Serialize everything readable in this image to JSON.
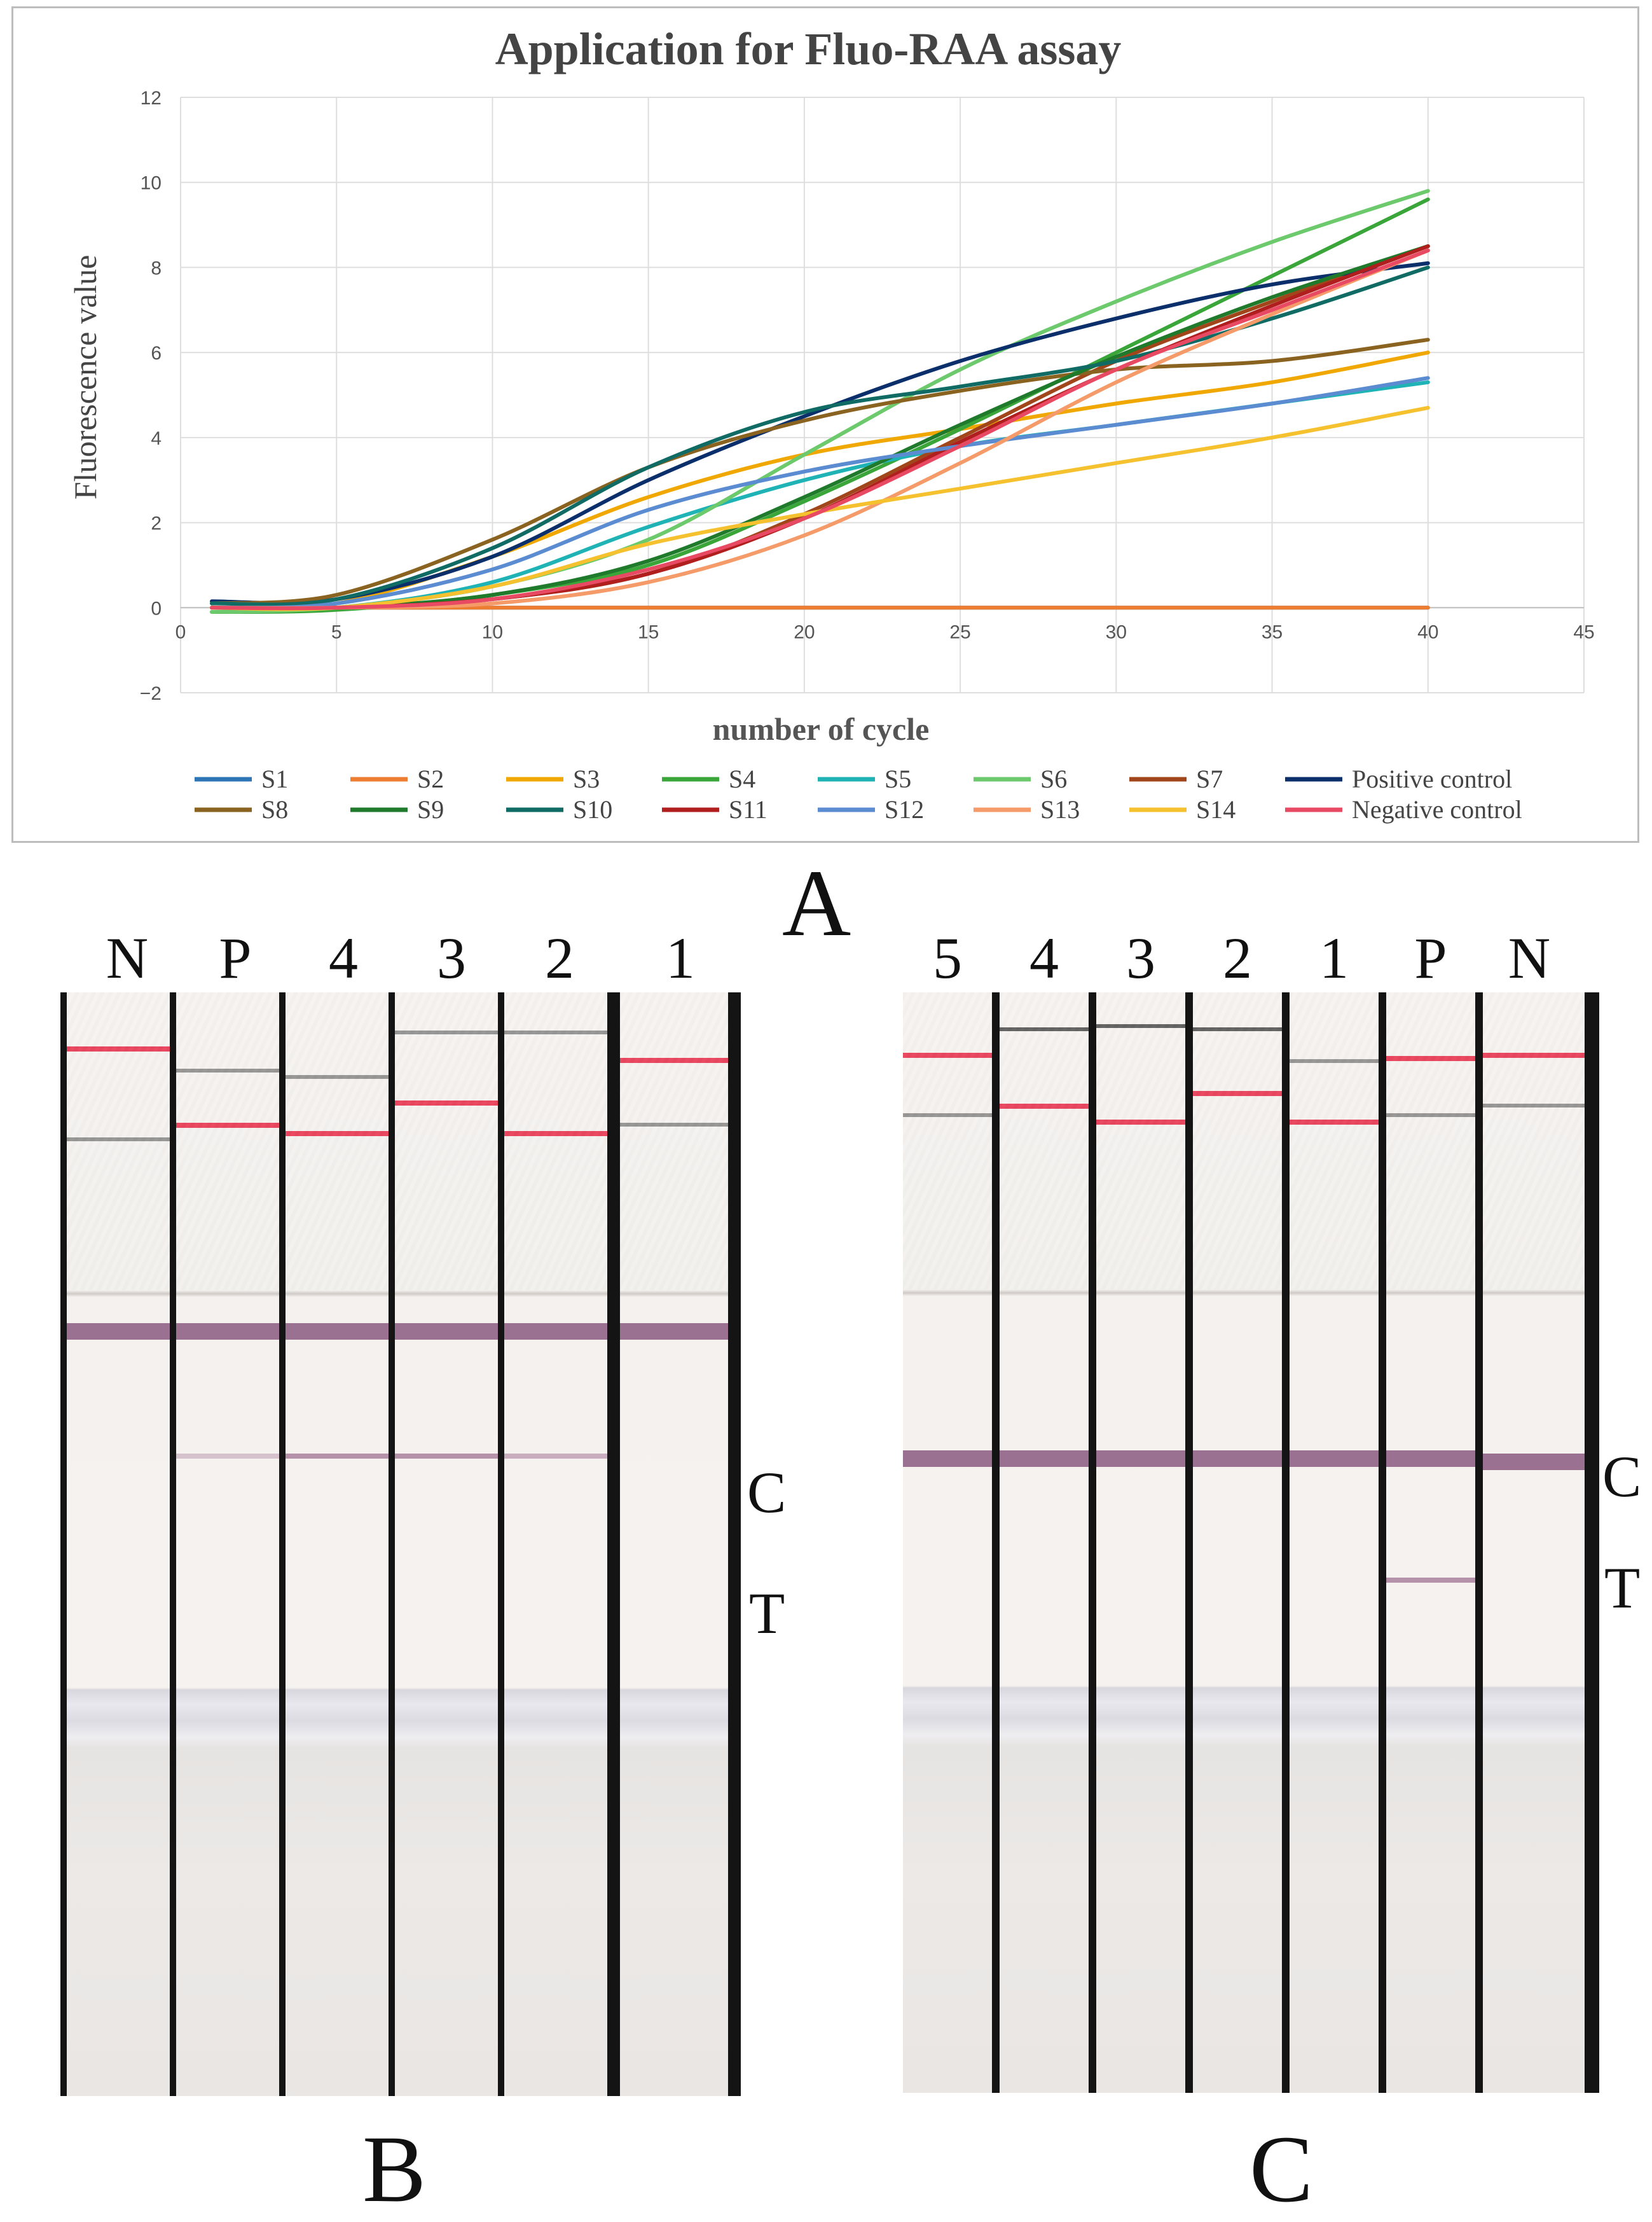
{
  "chart_data": {
    "type": "line",
    "title": "Application for Fluo-RAA assay",
    "xlabel": "number of cycle",
    "ylabel": "Fluorescence value",
    "xlim": [
      0,
      45
    ],
    "ylim": [
      -2,
      12
    ],
    "xticks": [
      0,
      5,
      10,
      15,
      20,
      25,
      30,
      35,
      40,
      45
    ],
    "yticks": [
      -2,
      0,
      2,
      4,
      6,
      8,
      10,
      12
    ],
    "ytick_labels": [
      "−2",
      "0",
      "2",
      "4",
      "6",
      "8",
      "10",
      "12"
    ],
    "grid": true,
    "legend_position": "bottom",
    "x": [
      1,
      5,
      10,
      15,
      20,
      25,
      30,
      35,
      40
    ],
    "series": [
      {
        "name": "S1",
        "color": "#2e75b6",
        "values": [
          0.0,
          0.0,
          0.0,
          0.0,
          0.0,
          0.0,
          0.0,
          0.0,
          0.0
        ]
      },
      {
        "name": "S2",
        "color": "#ed7d31",
        "values": [
          0.0,
          0.0,
          0.0,
          0.0,
          0.0,
          0.0,
          0.0,
          0.0,
          0.0
        ]
      },
      {
        "name": "S3",
        "color": "#f0a800",
        "values": [
          0.0,
          0.1,
          1.2,
          2.6,
          3.6,
          4.2,
          4.8,
          5.3,
          6.0
        ]
      },
      {
        "name": "S4",
        "color": "#3aa63a",
        "values": [
          -0.1,
          -0.05,
          0.3,
          1.0,
          2.5,
          4.2,
          6.0,
          7.8,
          9.6
        ]
      },
      {
        "name": "S5",
        "color": "#1fb3b5",
        "values": [
          0.0,
          0.0,
          0.6,
          1.9,
          3.0,
          3.8,
          4.3,
          4.8,
          5.3
        ]
      },
      {
        "name": "S6",
        "color": "#6cc96c",
        "values": [
          -0.1,
          0.0,
          0.5,
          1.6,
          3.6,
          5.6,
          7.2,
          8.6,
          9.8
        ]
      },
      {
        "name": "S7",
        "color": "#a0461a",
        "values": [
          0.0,
          0.0,
          0.2,
          0.8,
          2.2,
          4.0,
          5.8,
          7.2,
          8.5
        ]
      },
      {
        "name": "Positive control",
        "color": "#0a2f6b",
        "values": [
          0.15,
          0.2,
          1.2,
          3.0,
          4.5,
          5.8,
          6.8,
          7.6,
          8.1
        ]
      },
      {
        "name": "S8",
        "color": "#8a6320",
        "values": [
          0.1,
          0.3,
          1.6,
          3.3,
          4.4,
          5.1,
          5.6,
          5.8,
          6.3
        ]
      },
      {
        "name": "S9",
        "color": "#1f7a2c",
        "values": [
          0.0,
          0.0,
          0.3,
          1.1,
          2.6,
          4.3,
          5.9,
          7.3,
          8.5
        ]
      },
      {
        "name": "S10",
        "color": "#0f6b64",
        "values": [
          0.1,
          0.2,
          1.4,
          3.3,
          4.6,
          5.2,
          5.8,
          6.8,
          8.0
        ]
      },
      {
        "name": "S11",
        "color": "#b01e1e",
        "values": [
          0.0,
          0.0,
          0.2,
          0.8,
          2.1,
          3.9,
          5.6,
          7.1,
          8.5
        ]
      },
      {
        "name": "S12",
        "color": "#5b8bd0",
        "values": [
          0.0,
          0.1,
          0.9,
          2.3,
          3.2,
          3.8,
          4.3,
          4.8,
          5.4
        ]
      },
      {
        "name": "S13",
        "color": "#f59b6a",
        "values": [
          0.0,
          0.0,
          0.1,
          0.6,
          1.7,
          3.4,
          5.3,
          6.9,
          8.4
        ]
      },
      {
        "name": "S14",
        "color": "#f5c12e",
        "values": [
          0.0,
          0.0,
          0.5,
          1.5,
          2.2,
          2.8,
          3.4,
          4.0,
          4.7
        ]
      },
      {
        "name": "Negative control",
        "color": "#e84a64",
        "values": [
          0.0,
          0.0,
          0.2,
          0.9,
          2.1,
          3.8,
          5.6,
          7.0,
          8.4
        ]
      }
    ]
  },
  "panels": {
    "a_label": "A",
    "b_label": "B",
    "c_label": "C",
    "b_lanes": [
      "N",
      "P",
      "4",
      "3",
      "2",
      "1"
    ],
    "c_lanes": [
      "5",
      "4",
      "3",
      "2",
      "1",
      "P",
      "N"
    ],
    "control_line_label": "C",
    "test_line_label": "T"
  }
}
